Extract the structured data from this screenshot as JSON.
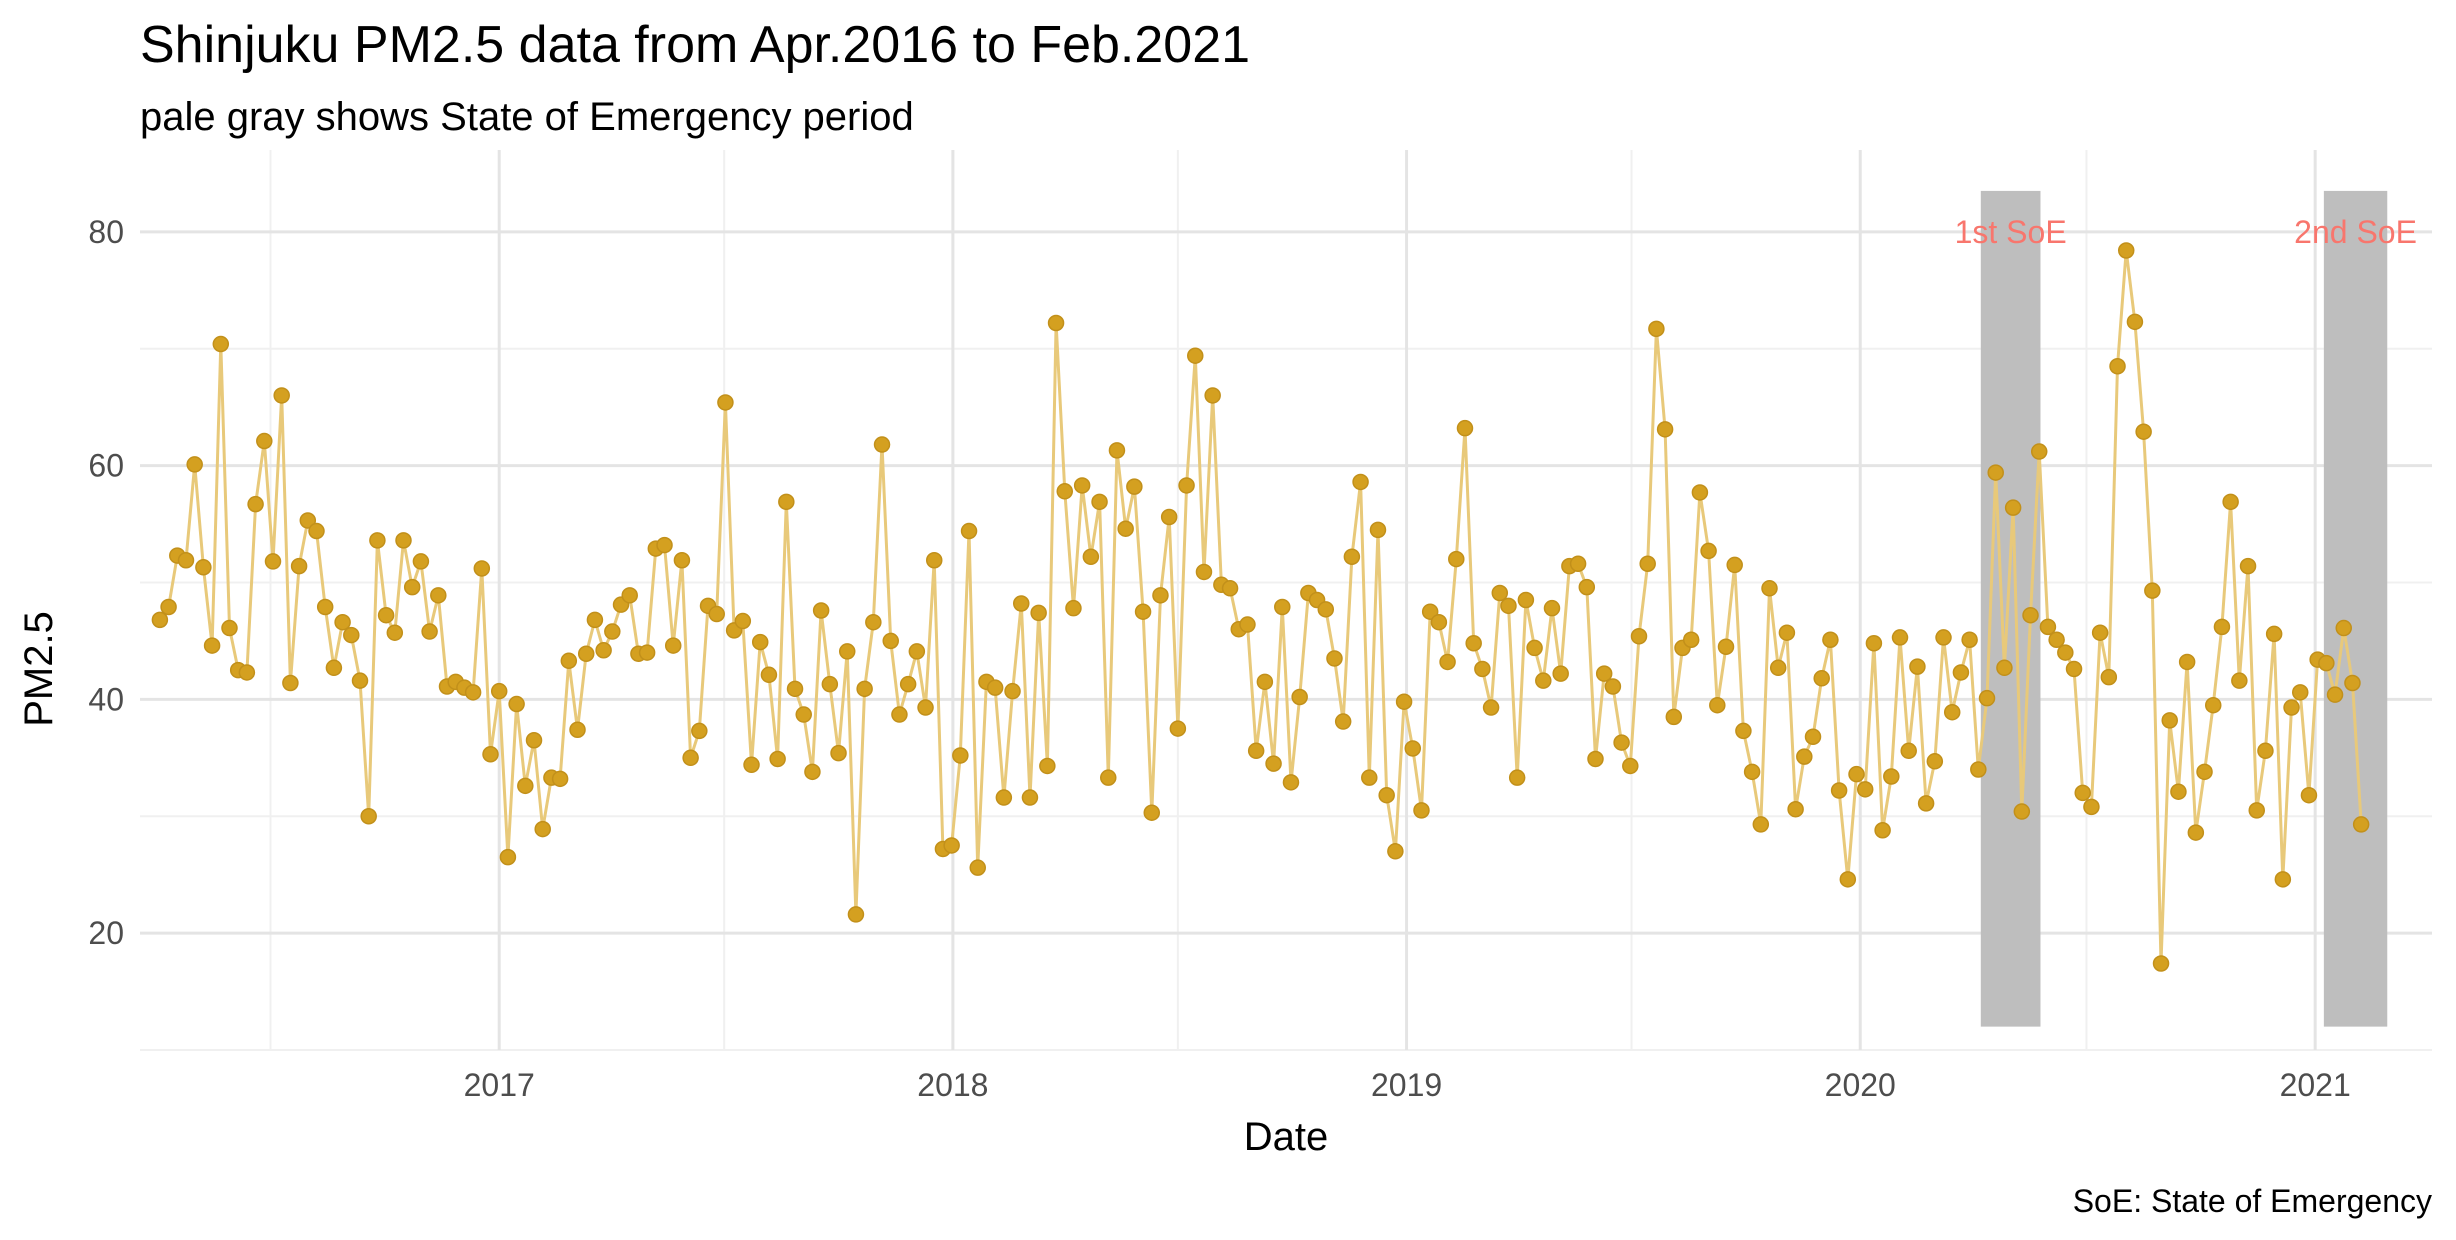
{
  "chart_data": {
    "type": "line",
    "title": "Shinjuku PM2.5 data from Apr.2016 to Feb.2021",
    "subtitle": "pale gray shows State of Emergency period",
    "xlabel": "Date",
    "ylabel": "PM2.5",
    "caption": "SoE: State of Emergency",
    "xlim": [
      "2016-03-18",
      "2021-04-05"
    ],
    "ylim": [
      10,
      87
    ],
    "x_ticks": [
      {
        "value": "2017-01-01",
        "label": "2017"
      },
      {
        "value": "2018-01-01",
        "label": "2018"
      },
      {
        "value": "2019-01-01",
        "label": "2019"
      },
      {
        "value": "2020-01-01",
        "label": "2020"
      },
      {
        "value": "2021-01-01",
        "label": "2021"
      }
    ],
    "x_minor_ticks": [
      "2016-07-01",
      "2017-07-01",
      "2018-07-01",
      "2019-07-01",
      "2020-07-01"
    ],
    "y_ticks": [
      20,
      40,
      60,
      80
    ],
    "y_minor_ticks": [
      10,
      30,
      50,
      70
    ],
    "grid": true,
    "colors": {
      "line": "#E8C97A",
      "point": "#D4A020",
      "point_edge": "#C2901A",
      "band": "#BEBEBE",
      "annotation": "#F8766D"
    },
    "bands": [
      {
        "label": "1st SoE",
        "x_start": "2020-04-07",
        "x_end": "2020-05-25",
        "y_min": 12,
        "y_max": 83.5
      },
      {
        "label": "2nd SoE",
        "x_start": "2021-01-08",
        "x_end": "2021-02-28",
        "y_min": 12,
        "y_max": 83.5
      }
    ],
    "series": [
      {
        "start_date": "2016-04-03",
        "step_days": 7,
        "values": [
          46.8,
          47.9,
          52.3,
          51.9,
          60.1,
          51.3,
          44.6,
          70.4,
          46.1,
          42.5,
          42.3,
          56.7,
          62.1,
          51.8,
          66.0,
          41.4,
          51.4,
          55.3,
          54.4,
          47.9,
          42.7,
          46.6,
          45.5,
          41.6,
          30.0,
          53.6,
          47.2,
          45.7,
          53.6,
          49.6,
          51.8,
          45.8,
          48.9,
          41.1,
          41.5,
          41.0,
          40.6,
          51.2,
          35.3,
          40.7,
          26.5,
          39.6,
          32.6,
          36.5,
          28.9,
          33.3,
          33.2,
          43.3,
          37.4,
          43.9,
          46.8,
          44.2,
          45.8,
          48.1,
          48.9,
          43.9,
          44.0,
          52.9,
          53.2,
          44.6,
          51.9,
          35.0,
          37.3,
          48.0,
          47.3,
          65.4,
          45.9,
          46.7,
          34.4,
          44.9,
          42.1,
          34.9,
          56.9,
          40.9,
          38.7,
          33.8,
          47.6,
          41.3,
          35.4,
          44.1,
          21.6,
          40.9,
          46.6,
          61.8,
          45.0,
          38.7,
          41.3,
          44.1,
          39.3,
          51.9,
          27.2,
          27.5,
          35.2,
          54.4,
          25.6,
          41.5,
          41.0,
          31.6,
          40.7,
          48.2,
          31.6,
          47.4,
          34.3,
          72.2,
          57.8,
          47.8,
          58.3,
          52.2,
          56.9,
          33.3,
          61.3,
          54.6,
          58.2,
          47.5,
          30.3,
          48.9,
          55.6,
          37.5,
          58.3,
          69.4,
          50.9,
          66.0,
          49.8,
          49.5,
          46.0,
          46.4,
          35.6,
          41.5,
          34.5,
          47.9,
          32.9,
          40.2,
          49.1,
          48.5,
          47.7,
          43.5,
          38.1,
          52.2,
          58.6,
          33.3,
          54.5,
          31.8,
          27.0,
          39.8,
          35.8,
          30.5,
          47.5,
          46.6,
          43.2,
          52.0,
          63.2,
          44.8,
          42.6,
          39.3,
          49.1,
          48.0,
          33.3,
          48.5,
          44.4,
          41.6,
          47.8,
          42.2,
          51.4,
          51.6,
          49.6,
          34.9,
          42.2,
          41.1,
          36.3,
          34.3,
          45.4,
          51.6,
          71.7,
          63.1,
          38.5,
          44.4,
          45.1,
          57.7,
          52.7,
          39.5,
          44.5,
          51.5,
          37.3,
          33.8,
          29.3,
          49.5,
          42.7,
          45.7,
          30.6,
          35.1,
          36.8,
          41.8,
          45.1,
          32.2,
          24.6,
          33.6,
          32.3,
          44.8,
          28.8,
          33.4,
          45.3,
          35.6,
          42.8,
          31.1,
          34.7,
          45.3,
          38.9,
          42.3,
          45.1,
          34.0,
          40.1,
          59.4,
          42.7,
          56.4,
          30.4,
          47.2,
          61.2,
          46.2,
          45.1,
          44.0,
          42.6,
          32.0,
          30.8,
          45.7,
          41.9,
          68.5,
          78.4,
          72.3,
          62.9,
          49.3,
          17.4,
          38.2,
          32.1,
          43.2,
          28.6,
          33.8,
          39.5,
          46.2,
          56.9,
          41.6,
          51.4,
          30.5,
          35.6,
          45.6,
          24.6,
          39.3,
          40.6,
          31.8,
          43.4,
          43.1,
          40.4,
          46.1,
          41.4,
          29.3
        ]
      }
    ]
  }
}
